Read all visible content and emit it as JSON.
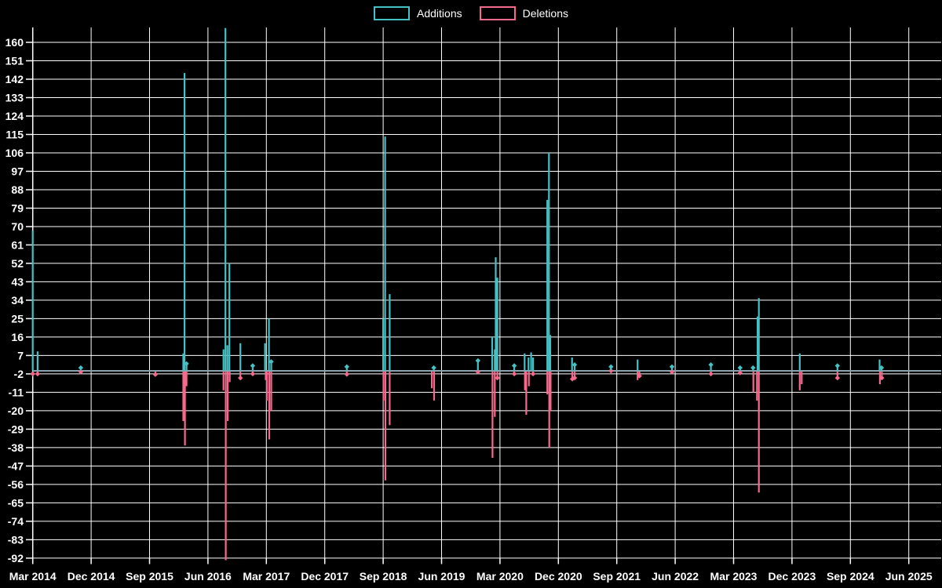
{
  "legend": {
    "additions_label": "Additions",
    "deletions_label": "Deletions",
    "position": "top-center"
  },
  "colors": {
    "background": "#000000",
    "grid": "#ffffff",
    "text": "#ffffff",
    "additions": "#44c1c5",
    "deletions": "#f5698c",
    "baseline": "#8aa2ae"
  },
  "chart_data": {
    "type": "line",
    "description": "Weekly additions/deletions code-frequency style chart with sharp spikes on a zero baseline",
    "x_unit": "months_since_Mar_2014",
    "x_tick_interval_months": 9,
    "x_tick_labels": [
      "Mar 2014",
      "Dec 2014",
      "Sep 2015",
      "Jun 2016",
      "Mar 2017",
      "Dec 2017",
      "Sep 2018",
      "Jun 2019",
      "Mar 2020",
      "Dec 2020",
      "Sep 2021",
      "Jun 2022",
      "Mar 2023",
      "Dec 2023",
      "Sep 2024",
      "Jun 2025"
    ],
    "y_ticks": [
      160,
      151,
      142,
      133,
      124,
      115,
      106,
      97,
      88,
      79,
      70,
      61,
      52,
      43,
      34,
      25,
      16,
      7,
      -2,
      -11,
      -20,
      -29,
      -38,
      -47,
      -56,
      -65,
      -74,
      -83,
      -92
    ],
    "ylim": [
      -92,
      167
    ],
    "grid": true,
    "legend_position": "top-center",
    "series": [
      {
        "name": "Additions",
        "color": "#44c1c5",
        "baseline_value": 0,
        "points": [
          [
            0,
            68
          ],
          [
            0.75,
            9
          ],
          [
            7.4,
            1
          ],
          [
            23.2,
            8
          ],
          [
            23.4,
            145
          ],
          [
            23.7,
            3
          ],
          [
            29.4,
            10
          ],
          [
            29.7,
            167
          ],
          [
            30.0,
            12
          ],
          [
            30.3,
            52
          ],
          [
            32.0,
            13
          ],
          [
            33.9,
            2
          ],
          [
            35.8,
            13
          ],
          [
            36.4,
            25
          ],
          [
            36.75,
            4
          ],
          [
            48.4,
            1.5
          ],
          [
            54.0,
            25
          ],
          [
            54.3,
            114
          ],
          [
            55.0,
            37
          ],
          [
            61.8,
            1
          ],
          [
            68.6,
            4.5
          ],
          [
            70.8,
            16
          ],
          [
            71.2,
            10
          ],
          [
            71.35,
            55
          ],
          [
            71.6,
            45
          ],
          [
            74.2,
            2
          ],
          [
            75.8,
            8
          ],
          [
            76.4,
            6
          ],
          [
            76.8,
            8.5
          ],
          [
            77.1,
            6
          ],
          [
            79.3,
            83
          ],
          [
            79.55,
            106
          ],
          [
            79.75,
            17
          ],
          [
            83.1,
            6
          ],
          [
            83.5,
            2.5
          ],
          [
            89.1,
            1.5
          ],
          [
            93.2,
            5
          ],
          [
            98.5,
            1.5
          ],
          [
            104.5,
            2.5
          ],
          [
            109.0,
            1
          ],
          [
            111.0,
            1
          ],
          [
            111.7,
            26
          ],
          [
            111.9,
            35
          ],
          [
            118.2,
            8
          ],
          [
            124.0,
            2
          ],
          [
            130.5,
            5
          ],
          [
            130.8,
            1
          ]
        ]
      },
      {
        "name": "Deletions",
        "color": "#f5698c",
        "baseline_value": -1,
        "points": [
          [
            0,
            -2
          ],
          [
            0.75,
            -2
          ],
          [
            7.4,
            -1
          ],
          [
            18.9,
            -2.3
          ],
          [
            23.2,
            -25
          ],
          [
            23.45,
            -37
          ],
          [
            23.7,
            -8
          ],
          [
            29.4,
            -10
          ],
          [
            29.75,
            -93
          ],
          [
            30.05,
            -25
          ],
          [
            30.35,
            -6
          ],
          [
            32.0,
            -4
          ],
          [
            33.9,
            -2
          ],
          [
            35.9,
            -5
          ],
          [
            36.1,
            -15
          ],
          [
            36.45,
            -34
          ],
          [
            36.75,
            -20
          ],
          [
            48.4,
            -2.2
          ],
          [
            54.05,
            -15
          ],
          [
            54.35,
            -54
          ],
          [
            55.0,
            -27
          ],
          [
            61.5,
            -9
          ],
          [
            61.85,
            -15
          ],
          [
            68.6,
            -1
          ],
          [
            70.85,
            -43
          ],
          [
            71.2,
            -23
          ],
          [
            71.6,
            -4
          ],
          [
            74.2,
            -2
          ],
          [
            75.85,
            -10
          ],
          [
            76.05,
            -22
          ],
          [
            76.45,
            -8
          ],
          [
            77.1,
            -2
          ],
          [
            79.3,
            -12
          ],
          [
            79.6,
            -38
          ],
          [
            79.8,
            -20
          ],
          [
            83.15,
            -4.5
          ],
          [
            83.5,
            -4
          ],
          [
            89.1,
            -0.5
          ],
          [
            93.2,
            -5
          ],
          [
            93.5,
            -3
          ],
          [
            98.5,
            -1
          ],
          [
            104.5,
            -2
          ],
          [
            109.0,
            -1.5
          ],
          [
            111.05,
            -11
          ],
          [
            111.6,
            -15
          ],
          [
            111.9,
            -60
          ],
          [
            118.2,
            -10
          ],
          [
            118.5,
            -7
          ],
          [
            124.0,
            -4
          ],
          [
            130.55,
            -7
          ],
          [
            130.85,
            -4
          ]
        ]
      }
    ]
  }
}
